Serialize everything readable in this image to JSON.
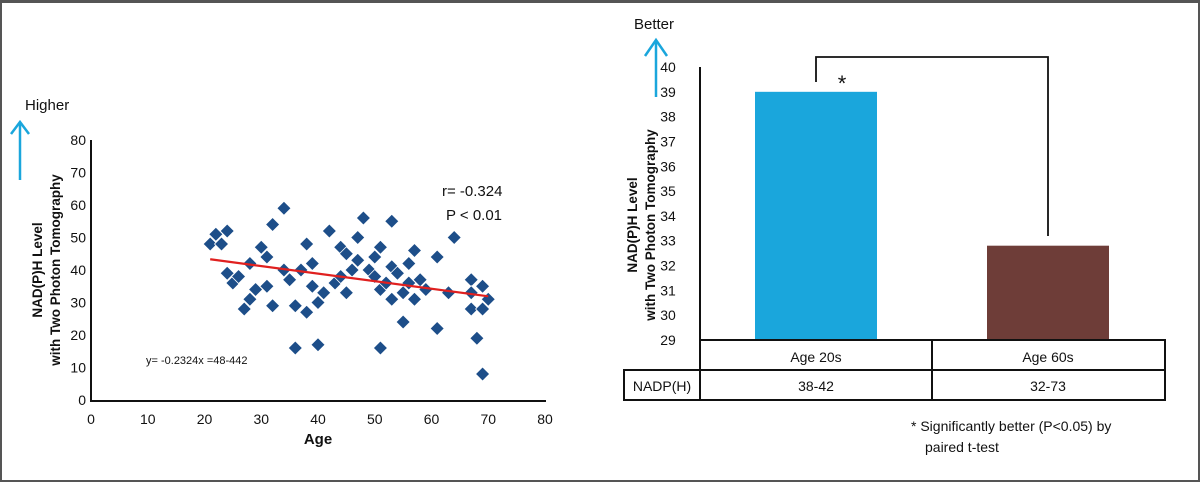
{
  "chart_data": [
    {
      "type": "scatter",
      "title": "",
      "xlabel": "Age",
      "ylabel": [
        "NAD(P)H Level",
        "with Two Photon Tomography"
      ],
      "xlim": [
        0,
        80
      ],
      "ylim": [
        0,
        80
      ],
      "xticks": [
        "0",
        "10",
        "20",
        "30",
        "40",
        "50",
        "60",
        "70",
        "80"
      ],
      "yticks": [
        "0",
        "10",
        "20",
        "30",
        "40",
        "50",
        "60",
        "70",
        "80"
      ],
      "direction_label": "Higher",
      "marker_color": "#1d4e89",
      "trend_color": "#e0201f",
      "trendline": {
        "x": [
          21,
          70
        ],
        "y": [
          43.3,
          31.9
        ]
      },
      "annotations": {
        "equation": "y= -0.2324x =48-442",
        "r": "r= -0.324",
        "p": "P < 0.01"
      },
      "points": [
        [
          21,
          48
        ],
        [
          22,
          51
        ],
        [
          23,
          48
        ],
        [
          24,
          52
        ],
        [
          24,
          39
        ],
        [
          25,
          36
        ],
        [
          26,
          38
        ],
        [
          27,
          28
        ],
        [
          28,
          31
        ],
        [
          28,
          42
        ],
        [
          29,
          34
        ],
        [
          30,
          47
        ],
        [
          31,
          35
        ],
        [
          31,
          44
        ],
        [
          32,
          29
        ],
        [
          32,
          54
        ],
        [
          34,
          59
        ],
        [
          34,
          40
        ],
        [
          35,
          37
        ],
        [
          36,
          29
        ],
        [
          36,
          16
        ],
        [
          37,
          40
        ],
        [
          38,
          27
        ],
        [
          38,
          48
        ],
        [
          39,
          42
        ],
        [
          39,
          35
        ],
        [
          40,
          17
        ],
        [
          40,
          30
        ],
        [
          41,
          33
        ],
        [
          42,
          52
        ],
        [
          43,
          36
        ],
        [
          44,
          47
        ],
        [
          44,
          38
        ],
        [
          45,
          33
        ],
        [
          45,
          45
        ],
        [
          46,
          40
        ],
        [
          47,
          50
        ],
        [
          47,
          43
        ],
        [
          48,
          56
        ],
        [
          49,
          40
        ],
        [
          50,
          38
        ],
        [
          50,
          44
        ],
        [
          51,
          34
        ],
        [
          51,
          16
        ],
        [
          51,
          47
        ],
        [
          52,
          36
        ],
        [
          53,
          41
        ],
        [
          53,
          31
        ],
        [
          53,
          55
        ],
        [
          54,
          39
        ],
        [
          55,
          33
        ],
        [
          55,
          24
        ],
        [
          56,
          42
        ],
        [
          56,
          36
        ],
        [
          57,
          31
        ],
        [
          57,
          46
        ],
        [
          58,
          37
        ],
        [
          59,
          34
        ],
        [
          61,
          44
        ],
        [
          61,
          22
        ],
        [
          63,
          33
        ],
        [
          64,
          50
        ],
        [
          67,
          37
        ],
        [
          67,
          33
        ],
        [
          67,
          28
        ],
        [
          68,
          19
        ],
        [
          69,
          35
        ],
        [
          69,
          28
        ],
        [
          69,
          8
        ],
        [
          70,
          31
        ]
      ]
    },
    {
      "type": "bar",
      "title": "",
      "xlabel": "",
      "ylabel": [
        "NAD(P)H Level",
        "with Two Photon Tomography"
      ],
      "ylim": [
        29,
        40
      ],
      "yticks": [
        "29",
        "30",
        "31",
        "32",
        "33",
        "34",
        "35",
        "36",
        "37",
        "38",
        "39",
        "40"
      ],
      "direction_label": "Better",
      "categories": [
        "Age 20s",
        "Age 60s"
      ],
      "values": [
        39,
        32.8
      ],
      "colors": [
        "#1aa6dc",
        "#6e3d38"
      ],
      "significance_marker": "*",
      "table": {
        "row_header": "NADP(H)",
        "cells": [
          "38-42",
          "32-73"
        ]
      },
      "footnote": [
        "* Significantly better (P<0.05) by",
        "paired t-test"
      ]
    }
  ],
  "accent": {
    "arrow_color": "#1aa6dc"
  }
}
